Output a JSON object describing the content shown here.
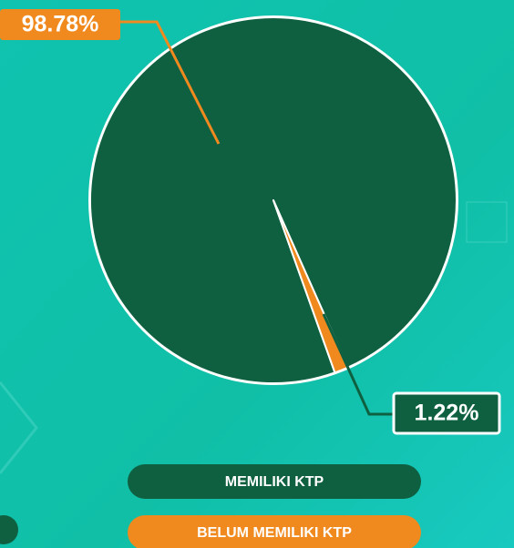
{
  "chart_data": {
    "type": "pie",
    "categories": [
      "MEMILIKI KTP",
      "BELUM MEMILIKI KTP"
    ],
    "values": [
      98.78,
      1.22
    ],
    "value_labels": [
      "98.78%",
      "1.22%"
    ],
    "colors": [
      "#0e6040",
      "#f08a1e"
    ]
  }
}
